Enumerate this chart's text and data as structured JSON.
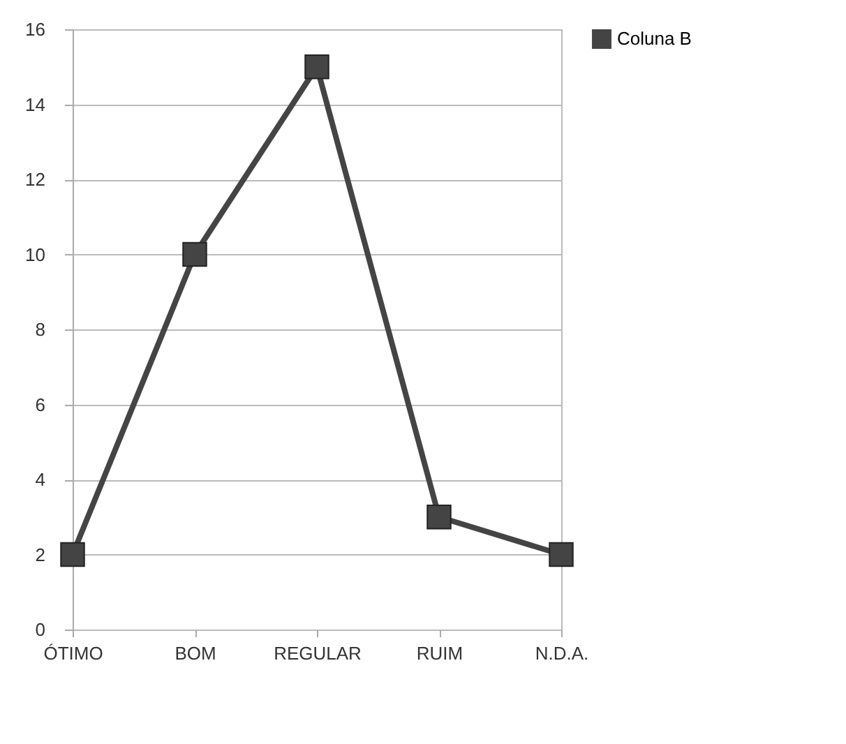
{
  "chart_data": {
    "type": "line",
    "categories": [
      "ÓTIMO",
      "BOM",
      "REGULAR",
      "RUIM",
      "N.D.A."
    ],
    "series": [
      {
        "name": "Coluna B",
        "color": "#444444",
        "values": [
          2,
          10,
          15,
          3,
          2
        ]
      }
    ],
    "ylim": [
      0,
      16
    ],
    "yticks": [
      0,
      2,
      4,
      6,
      8,
      10,
      12,
      14,
      16
    ],
    "grid": "y",
    "legend": "right",
    "marker": "square"
  }
}
